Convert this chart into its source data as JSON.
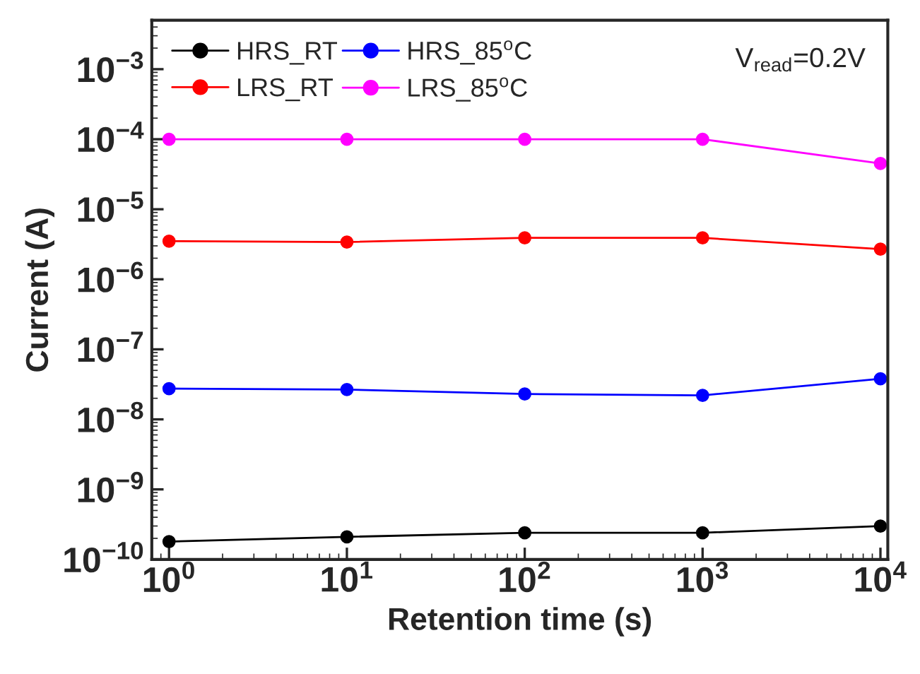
{
  "chart_data": {
    "type": "line",
    "xlabel": "Retention time (s)",
    "ylabel": "Current (A)",
    "x": [
      1,
      10,
      100,
      1000,
      10000
    ],
    "series": [
      {
        "name": "HRS_RT",
        "color": "#000000",
        "values": [
          1.8e-10,
          2.1e-10,
          2.4e-10,
          2.4e-10,
          3e-10
        ]
      },
      {
        "name": "LRS_RT",
        "color": "#ff0000",
        "values": [
          3.5e-06,
          3.4e-06,
          3.9e-06,
          3.9e-06,
          2.7e-06
        ]
      },
      {
        "name": "HRS_85$^{o}$C",
        "color": "#0000ff",
        "values": [
          2.75e-08,
          2.66e-08,
          2.3e-08,
          2.2e-08,
          3.8e-08
        ]
      },
      {
        "name": "LRS_85$^{o}$C",
        "color": "#ff00ff",
        "values": [
          0.0001,
          0.0001,
          0.0001,
          0.0001,
          4.5e-05
        ]
      }
    ],
    "log": "xy",
    "marker": "circle",
    "line_style": "solid",
    "legend": "top left",
    "grid": false,
    "xlim": [
      0.8,
      11000
    ],
    "ylim": [
      1e-10,
      0.005
    ],
    "xticks": [
      {
        "value": 1,
        "label": "10$^{0}$"
      },
      {
        "value": 10,
        "label": "10$^{1}$"
      },
      {
        "value": 100,
        "label": "10$^{2}$"
      },
      {
        "value": 1000,
        "label": "10$^{3}$"
      },
      {
        "value": 10000,
        "label": "10$^{4}$"
      }
    ],
    "yticks": [
      {
        "value": 1e-10,
        "label": "10$^{−10}$"
      },
      {
        "value": 1e-09,
        "label": "10$^{−9}$"
      },
      {
        "value": 1e-08,
        "label": "10$^{−8}$"
      },
      {
        "value": 1e-07,
        "label": "10$^{−7}$"
      },
      {
        "value": 1e-06,
        "label": "10$^{−6}$"
      },
      {
        "value": 1e-05,
        "label": "10$^{−5}$"
      },
      {
        "value": 0.0001,
        "label": "10$^{−4}$"
      },
      {
        "value": 0.001,
        "label": "10$^{−3}$"
      }
    ],
    "annotations": [
      "V$_{read}$=0.2V"
    ]
  }
}
